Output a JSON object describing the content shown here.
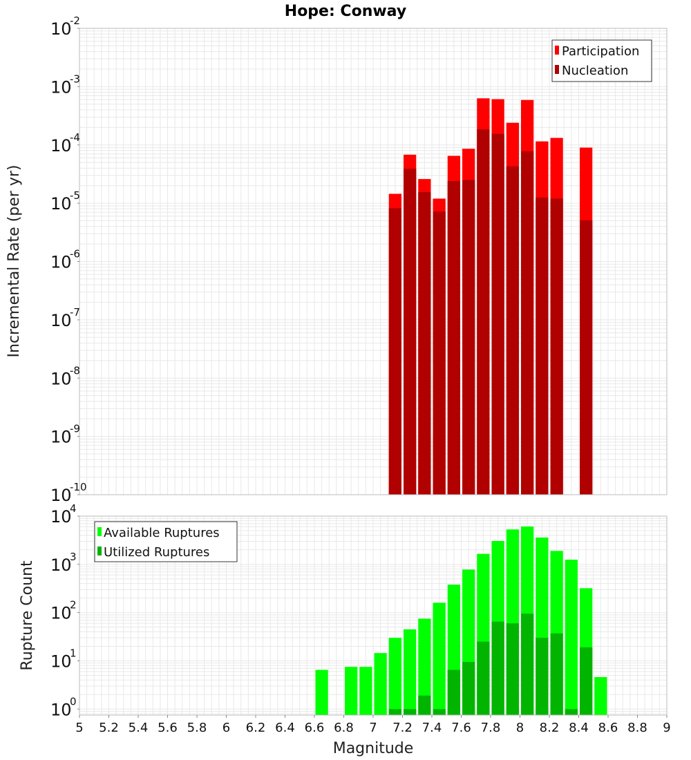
{
  "chart_data": [
    {
      "type": "bar",
      "title": "Hope: Conway",
      "xlabel": "Magnitude",
      "ylabel": "Incremental Rate (per yr)",
      "yscale": "log",
      "ylim": [
        1e-10,
        0.01
      ],
      "xlim": [
        5,
        9
      ],
      "bin_width": 0.1,
      "grid": true,
      "legend_position": "top-right",
      "colors": {
        "participation": "#ff0000",
        "nucleation": "#b00000",
        "grid": "#e8e8e8",
        "frame": "#bbbbbb"
      },
      "y_tick_exponents": [
        -10,
        -9,
        -8,
        -7,
        -6,
        -5,
        -4,
        -3,
        -2
      ],
      "x": [
        7.15,
        7.25,
        7.35,
        7.45,
        7.55,
        7.65,
        7.75,
        7.85,
        7.95,
        8.05,
        8.15,
        8.25,
        8.45
      ],
      "series": [
        {
          "name": "Participation",
          "values": [
            1.45e-05,
            6.8e-05,
            2.6e-05,
            1.2e-05,
            6.5e-05,
            8.6e-05,
            0.00063,
            0.00061,
            0.00024,
            0.00059,
            0.000115,
            0.000132,
            9e-05
          ]
        },
        {
          "name": "Nucleation",
          "values": [
            8.2e-06,
            3.9e-05,
            1.55e-05,
            7.2e-06,
            2.4e-05,
            2.5e-05,
            0.000185,
            0.000155,
            4.3e-05,
            7.8e-05,
            1.25e-05,
            1.2e-05,
            5.1e-06
          ]
        }
      ]
    },
    {
      "type": "bar",
      "title": "",
      "xlabel": "Magnitude",
      "ylabel": "Rupture Count",
      "yscale": "log",
      "ylim": [
        0.75,
        10000
      ],
      "xlim": [
        5,
        9
      ],
      "bin_width": 0.1,
      "grid": true,
      "legend_position": "top-left",
      "colors": {
        "available": "#00ff00",
        "utilized": "#00b400",
        "grid": "#e8e8e8",
        "frame": "#bbbbbb"
      },
      "y_tick_exponents": [
        0,
        1,
        2,
        3,
        4
      ],
      "x_ticks": [
        "5",
        "5.2",
        "5.4",
        "5.6",
        "5.8",
        "6",
        "6.2",
        "6.4",
        "6.6",
        "6.8",
        "7",
        "7.2",
        "7.4",
        "7.6",
        "7.8",
        "8",
        "8.2",
        "8.4",
        "8.6",
        "8.8",
        "9"
      ],
      "x": [
        6.65,
        6.85,
        6.95,
        7.05,
        7.15,
        7.25,
        7.35,
        7.45,
        7.55,
        7.65,
        7.75,
        7.85,
        7.95,
        8.05,
        8.15,
        8.25,
        8.35,
        8.45,
        8.55
      ],
      "series": [
        {
          "name": "Available Ruptures",
          "values": [
            6.5,
            7.5,
            7.5,
            14.5,
            30,
            45,
            75,
            160,
            380,
            780,
            1650,
            3050,
            5300,
            6100,
            3600,
            1900,
            1250,
            320,
            4.6
          ]
        },
        {
          "name": "Utilized Ruptures",
          "values": [
            null,
            null,
            null,
            null,
            1,
            1,
            1.9,
            1,
            6.5,
            9.5,
            25,
            65,
            60,
            95,
            30,
            37,
            1,
            19,
            null
          ]
        }
      ]
    }
  ]
}
